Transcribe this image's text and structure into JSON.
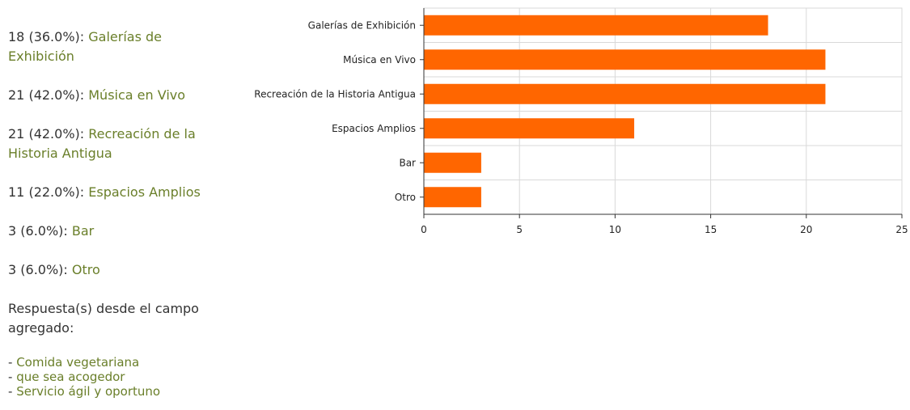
{
  "summary": {
    "items": [
      {
        "count": "18 (36.0%):",
        "label": "Galerías de Exhibición"
      },
      {
        "count": "21 (42.0%):",
        "label": "Música en Vivo"
      },
      {
        "count": "21 (42.0%):",
        "label": "Recreación de la Historia Antigua"
      },
      {
        "count": "11 (22.0%):",
        "label": "Espacios Amplios"
      },
      {
        "count": "3 (6.0%):",
        "label": "Bar"
      },
      {
        "count": "3 (6.0%):",
        "label": "Otro"
      }
    ],
    "extra_title": "Respuesta(s) desde el campo agregado:",
    "extra_responses": [
      "Comida vegetariana",
      "que sea acogedor",
      "Servicio ágil y oportuno"
    ]
  },
  "colors": {
    "bar": "#ff6600",
    "label_green": "#6a7f2a",
    "grid": "#d9d9d9"
  },
  "chart_data": {
    "type": "bar",
    "orientation": "horizontal",
    "categories": [
      "Galerías de Exhibición",
      "Música en Vivo",
      "Recreación de la Historia Antigua",
      "Espacios Amplios",
      "Bar",
      "Otro"
    ],
    "values": [
      18,
      21,
      21,
      11,
      3,
      3
    ],
    "xlim": [
      0,
      25
    ],
    "xticks": [
      0,
      5,
      10,
      15,
      20,
      25
    ],
    "grid": true
  }
}
